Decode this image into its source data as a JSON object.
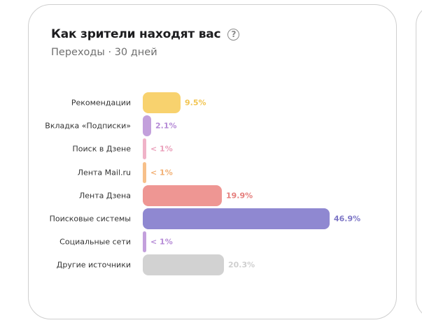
{
  "card": {
    "title": "Как зрители находят вас",
    "help_icon": "?",
    "subtitle": "Переходы · 30 дней"
  },
  "chart_data": {
    "type": "bar",
    "orientation": "horizontal",
    "title": "Как зрители находят вас",
    "subtitle": "Переходы · 30 дней",
    "categories": [
      "Рекомендации",
      "Вкладка «Подписки»",
      "Поиск в Дзене",
      "Лента Mail.ru",
      "Лента Дзена",
      "Поисковые системы",
      "Социальные сети",
      "Другие источники"
    ],
    "values": [
      9.5,
      2.1,
      0.5,
      0.5,
      19.9,
      46.9,
      0.5,
      20.3
    ],
    "value_labels": [
      "9.5%",
      "2.1%",
      "< 1%",
      "< 1%",
      "19.9%",
      "46.9%",
      "< 1%",
      "20.3%"
    ],
    "colors": [
      "#f8d26e",
      "#c3a0dc",
      "#f0b3c8",
      "#f7c08a",
      "#ee9693",
      "#8f88d1",
      "#c3a0dc",
      "#d2d2d2"
    ],
    "label_colors": [
      "#f2c552",
      "#b58ad6",
      "#ea9fba",
      "#f2b074",
      "#e57e7c",
      "#7d76c6",
      "#b58ad6",
      "#cfcfcf"
    ],
    "xlabel": "",
    "ylabel": "",
    "grid": false,
    "legend": false
  }
}
